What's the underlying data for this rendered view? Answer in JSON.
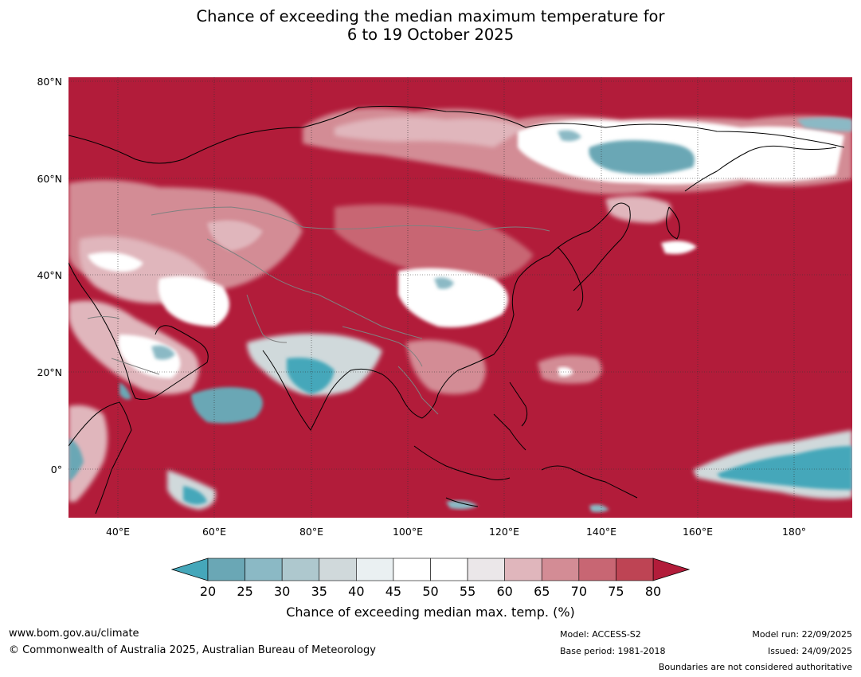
{
  "title": {
    "line1": "Chance of exceeding the median maximum temperature for",
    "line2": "6 to 19 October 2025"
  },
  "map": {
    "lat_labels": [
      "80°N",
      "60°N",
      "40°N",
      "20°N",
      "0°"
    ],
    "lon_labels": [
      "40°E",
      "60°E",
      "80°E",
      "100°E",
      "120°E",
      "140°E",
      "160°E",
      "180°"
    ],
    "background_color": "#b21c3a",
    "coastline_color": "#000000",
    "boundary_color": "#808080"
  },
  "colorbar": {
    "ticks": [
      "20",
      "25",
      "30",
      "35",
      "40",
      "45",
      "50",
      "55",
      "60",
      "65",
      "70",
      "75",
      "80"
    ],
    "colors": [
      "#6aa7b5",
      "#8bb9c5",
      "#aec8ce",
      "#d0d9db",
      "#eaf0f2",
      "#ffffff",
      "#ffffff",
      "#ebe7e9",
      "#e0b6bc",
      "#d38c95",
      "#c86673",
      "#be4454"
    ],
    "under_color": "#45a7ba",
    "over_color": "#b21c3a",
    "label": "Chance of exceeding median max. temp. (%)"
  },
  "footer": {
    "website": "www.bom.gov.au/climate",
    "copyright": "© Commonwealth of Australia 2025, Australian Bureau of Meteorology",
    "model": "Model: ACCESS-S2",
    "base_period": "Base period: 1981-2018",
    "model_run": "Model run: 22/09/2025",
    "issued": "Issued: 24/09/2025",
    "disclaimer": "Boundaries are not considered authoritative"
  }
}
